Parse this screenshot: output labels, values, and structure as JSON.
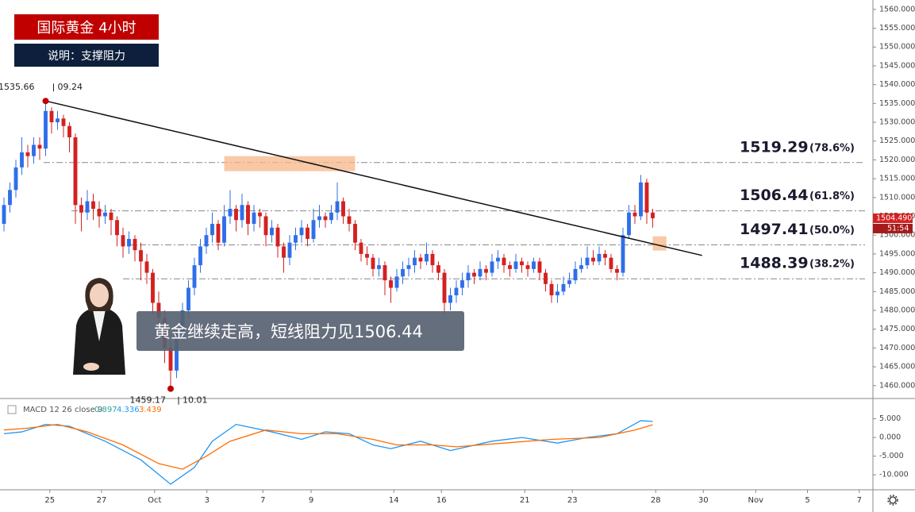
{
  "chart_data": [
    {
      "type": "candlestick",
      "title": "国际黄金  4小时",
      "subtitle": "说明：支撑阻力",
      "annotation": "黄金继续走高，短线阻力见1506.44",
      "up_color": "#2f6fe8",
      "down_color": "#d32121",
      "xlim": [
        0,
        146
      ],
      "ylim": [
        1457,
        1562.5
      ],
      "yticks": [
        {
          "value": 1460,
          "label": "1460.000"
        },
        {
          "value": 1465,
          "label": "1465.000"
        },
        {
          "value": 1470,
          "label": "1470.000"
        },
        {
          "value": 1475,
          "label": "1475.000"
        },
        {
          "value": 1480,
          "label": "1480.000"
        },
        {
          "value": 1485,
          "label": "1485.000"
        },
        {
          "value": 1490,
          "label": "1490.000"
        },
        {
          "value": 1495,
          "label": "1495.000"
        },
        {
          "value": 1500,
          "label": "1500.000"
        },
        {
          "value": 1505,
          "label": "1505.000"
        },
        {
          "value": 1510,
          "label": "1510.000"
        },
        {
          "value": 1515,
          "label": "1515.000"
        },
        {
          "value": 1520,
          "label": "1520.000"
        },
        {
          "value": 1525,
          "label": "1525.000"
        },
        {
          "value": 1530,
          "label": "1530.000"
        },
        {
          "value": 1535,
          "label": "1535.000"
        },
        {
          "value": 1540,
          "label": "1540.000"
        },
        {
          "value": 1545,
          "label": "1545.000"
        },
        {
          "value": 1550,
          "label": "1550.000"
        },
        {
          "value": 1555,
          "label": "1555.000"
        },
        {
          "value": 1560,
          "label": "1560.000"
        }
      ],
      "last_price": {
        "value": 1504.49,
        "label": "1504.490"
      },
      "countdown": "51:54",
      "extremes": [
        {
          "x": 7,
          "price": 1535.66,
          "date": "09.24"
        },
        {
          "x": 28,
          "price": 1459.17,
          "date": "10.01"
        }
      ],
      "levels": [
        {
          "value": 1519.29,
          "pct": "(78.6%)"
        },
        {
          "value": 1506.44,
          "pct": "(61.8%)"
        },
        {
          "value": 1497.41,
          "pct": "(50.0%)"
        },
        {
          "value": 1488.39,
          "pct": "(38.2%)"
        }
      ],
      "trendline": {
        "x": [
          7,
          117.3
        ],
        "y": [
          1535.66,
          1494.6
        ]
      },
      "highlights": [
        {
          "x": [
            37,
            59
          ],
          "y": [
            1517,
            1521
          ]
        },
        {
          "x": [
            109,
            111.3
          ],
          "y": [
            1495.9,
            1499.7
          ]
        }
      ],
      "candles": [
        [
          1503,
          1510,
          1501,
          1508
        ],
        [
          1508,
          1514,
          1506,
          1512
        ],
        [
          1512,
          1520,
          1510,
          1518
        ],
        [
          1518,
          1526,
          1516,
          1522
        ],
        [
          1522,
          1524,
          1518,
          1521
        ],
        [
          1521,
          1526,
          1519,
          1524
        ],
        [
          1524,
          1526,
          1520,
          1523
        ],
        [
          1523,
          1535.66,
          1521,
          1533
        ],
        [
          1533,
          1534,
          1527,
          1530
        ],
        [
          1530,
          1533,
          1528,
          1531
        ],
        [
          1531,
          1532,
          1526,
          1529
        ],
        [
          1529,
          1530,
          1522,
          1526
        ],
        [
          1526,
          1527,
          1503,
          1508
        ],
        [
          1508,
          1510,
          1501,
          1506
        ],
        [
          1506,
          1512,
          1504,
          1509
        ],
        [
          1509,
          1511,
          1504,
          1507
        ],
        [
          1507,
          1509,
          1502,
          1505
        ],
        [
          1505,
          1508,
          1503,
          1506
        ],
        [
          1506,
          1507,
          1500,
          1504
        ],
        [
          1504,
          1505,
          1497,
          1500
        ],
        [
          1500,
          1502,
          1494,
          1497
        ],
        [
          1497,
          1501,
          1495,
          1499
        ],
        [
          1499,
          1500,
          1493,
          1496
        ],
        [
          1496,
          1498,
          1488,
          1493
        ],
        [
          1493,
          1495,
          1487,
          1490
        ],
        [
          1490,
          1491,
          1479,
          1482
        ],
        [
          1482,
          1485,
          1475,
          1478
        ],
        [
          1478,
          1480,
          1466,
          1470
        ],
        [
          1470,
          1472,
          1459.17,
          1464
        ],
        [
          1464,
          1476,
          1462,
          1474
        ],
        [
          1474,
          1482,
          1472,
          1480
        ],
        [
          1480,
          1488,
          1478,
          1486
        ],
        [
          1486,
          1494,
          1484,
          1492
        ],
        [
          1492,
          1499,
          1490,
          1497
        ],
        [
          1497,
          1502,
          1495,
          1500
        ],
        [
          1500,
          1506,
          1498,
          1503
        ],
        [
          1503,
          1504,
          1496,
          1498
        ],
        [
          1498,
          1508,
          1497,
          1505
        ],
        [
          1505,
          1512,
          1503,
          1507
        ],
        [
          1507,
          1508,
          1501,
          1504
        ],
        [
          1504,
          1511,
          1502,
          1508
        ],
        [
          1508,
          1509,
          1500,
          1503
        ],
        [
          1503,
          1508,
          1501,
          1506
        ],
        [
          1506,
          1507,
          1502,
          1505
        ],
        [
          1505,
          1506,
          1497,
          1500
        ],
        [
          1500,
          1504,
          1498,
          1502
        ],
        [
          1502,
          1503,
          1494,
          1497
        ],
        [
          1497,
          1498,
          1490,
          1494
        ],
        [
          1494,
          1500,
          1492,
          1498
        ],
        [
          1498,
          1502,
          1496,
          1500
        ],
        [
          1500,
          1504,
          1498,
          1502
        ],
        [
          1502,
          1503,
          1497,
          1499
        ],
        [
          1499,
          1507,
          1498,
          1504
        ],
        [
          1504,
          1508,
          1502,
          1505
        ],
        [
          1505,
          1506,
          1502,
          1504
        ],
        [
          1504,
          1508,
          1503,
          1506
        ],
        [
          1506,
          1514,
          1504,
          1509
        ],
        [
          1509,
          1510,
          1503,
          1505
        ],
        [
          1505,
          1507,
          1501,
          1503
        ],
        [
          1503,
          1504,
          1496,
          1498
        ],
        [
          1498,
          1499,
          1493,
          1495
        ],
        [
          1495,
          1497,
          1492,
          1494
        ],
        [
          1494,
          1495,
          1489,
          1491
        ],
        [
          1491,
          1494,
          1489,
          1492
        ],
        [
          1492,
          1493,
          1484,
          1488
        ],
        [
          1488,
          1489,
          1482,
          1486
        ],
        [
          1486,
          1491,
          1485,
          1489
        ],
        [
          1489,
          1493,
          1487,
          1491
        ],
        [
          1491,
          1494,
          1489,
          1492
        ],
        [
          1492,
          1496,
          1490,
          1494
        ],
        [
          1494,
          1495,
          1491,
          1493
        ],
        [
          1493,
          1498,
          1492,
          1495
        ],
        [
          1495,
          1496,
          1490,
          1492
        ],
        [
          1492,
          1493,
          1488,
          1490
        ],
        [
          1490,
          1491,
          1479,
          1482
        ],
        [
          1482,
          1486,
          1480,
          1484
        ],
        [
          1484,
          1488,
          1482,
          1486
        ],
        [
          1486,
          1490,
          1484,
          1488
        ],
        [
          1488,
          1492,
          1486,
          1490
        ],
        [
          1490,
          1491,
          1487,
          1489
        ],
        [
          1489,
          1493,
          1488,
          1491
        ],
        [
          1491,
          1492,
          1488,
          1490
        ],
        [
          1490,
          1495,
          1489,
          1493
        ],
        [
          1493,
          1496,
          1491,
          1494
        ],
        [
          1494,
          1495,
          1490,
          1492
        ],
        [
          1492,
          1493,
          1489,
          1491
        ],
        [
          1491,
          1495,
          1490,
          1493
        ],
        [
          1493,
          1494,
          1490,
          1492
        ],
        [
          1492,
          1493,
          1489,
          1491
        ],
        [
          1491,
          1494,
          1490,
          1493
        ],
        [
          1493,
          1494,
          1488,
          1490
        ],
        [
          1490,
          1491,
          1485,
          1487
        ],
        [
          1487,
          1488,
          1482,
          1484
        ],
        [
          1484,
          1487,
          1482,
          1485
        ],
        [
          1485,
          1489,
          1484,
          1487
        ],
        [
          1487,
          1490,
          1486,
          1488
        ],
        [
          1488,
          1493,
          1487,
          1491
        ],
        [
          1491,
          1494,
          1490,
          1492
        ],
        [
          1492,
          1497,
          1491,
          1494
        ],
        [
          1494,
          1496,
          1492,
          1493
        ],
        [
          1493,
          1497,
          1492,
          1495
        ],
        [
          1495,
          1496,
          1492,
          1494
        ],
        [
          1494,
          1495,
          1490,
          1491
        ],
        [
          1491,
          1492,
          1488,
          1490
        ],
        [
          1490,
          1502,
          1489,
          1500
        ],
        [
          1500,
          1508,
          1499,
          1506
        ],
        [
          1506,
          1508,
          1503,
          1505
        ],
        [
          1505,
          1516,
          1504,
          1514
        ],
        [
          1514,
          1515,
          1503,
          1506
        ],
        [
          1506,
          1507,
          1502,
          1504.49
        ]
      ]
    },
    {
      "type": "line",
      "title": "MACD 12 26 close 9",
      "readout": [
        {
          "value": 0.897,
          "color": "#26a69a"
        },
        {
          "value": 4.336,
          "color": "#2196f3"
        },
        {
          "value": 3.439,
          "color": "#ff6d00"
        }
      ],
      "xlim": [
        0,
        146
      ],
      "ylim": [
        -14,
        9.8
      ],
      "yticks": [
        {
          "value": 5,
          "label": "5.000"
        },
        {
          "value": 0,
          "label": "0.000"
        },
        {
          "value": -5,
          "label": "-5.000"
        },
        {
          "value": -10,
          "label": "-10.000"
        }
      ],
      "xticks": [
        {
          "value": 7.7,
          "label": "25"
        },
        {
          "value": 16.4,
          "label": "27"
        },
        {
          "value": 25.3,
          "label": "Oct"
        },
        {
          "value": 34.1,
          "label": "3"
        },
        {
          "value": 43.5,
          "label": "7"
        },
        {
          "value": 51.6,
          "label": "9"
        },
        {
          "value": 65.5,
          "label": "14"
        },
        {
          "value": 73.5,
          "label": "16"
        },
        {
          "value": 87.5,
          "label": "21"
        },
        {
          "value": 95.5,
          "label": "23"
        },
        {
          "value": 109.5,
          "label": "28"
        },
        {
          "value": 117.5,
          "label": "30"
        },
        {
          "value": 126.3,
          "label": "Nov"
        },
        {
          "value": 135,
          "label": "5"
        },
        {
          "value": 143.7,
          "label": "7"
        }
      ],
      "series": [
        {
          "color": "#2196f3",
          "x": [
            0,
            3,
            7,
            11,
            17,
            23,
            28,
            32,
            35,
            39,
            45,
            50,
            54,
            58,
            62,
            65,
            70,
            75,
            82,
            87,
            93,
            98,
            103,
            107,
            109
          ],
          "values": [
            1,
            1.5,
            3.5,
            3,
            -1,
            -6,
            -12.5,
            -8,
            -1,
            3.5,
            1.5,
            -0.5,
            1.5,
            1,
            -2,
            -3,
            -1,
            -3.5,
            -1,
            0,
            -1.5,
            0,
            1,
            4.5,
            4.3
          ]
        },
        {
          "color": "#ff6d00",
          "x": [
            0,
            4,
            9,
            14,
            20,
            26,
            30,
            34,
            38,
            44,
            50,
            56,
            62,
            66,
            72,
            76,
            84,
            92,
            100,
            106,
            109
          ],
          "values": [
            2,
            2.5,
            3.5,
            1.5,
            -2,
            -7,
            -8.5,
            -5,
            -1,
            2,
            1,
            1,
            -0.5,
            -2,
            -2,
            -2.5,
            -1.5,
            -0.5,
            0,
            2,
            3.4
          ]
        }
      ]
    }
  ]
}
